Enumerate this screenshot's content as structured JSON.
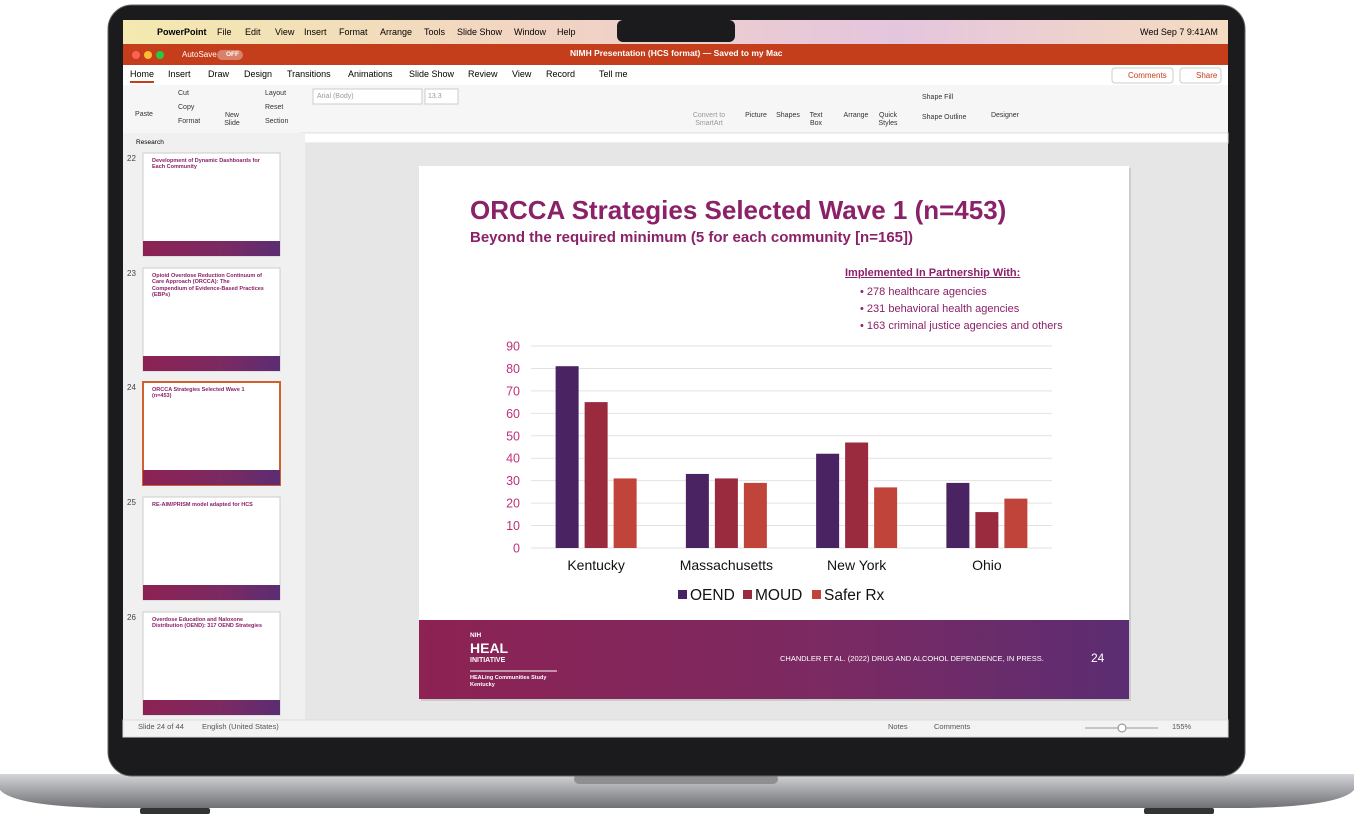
{
  "menu_bar": {
    "app": "PowerPoint",
    "items": [
      "File",
      "Edit",
      "View",
      "Insert",
      "Format",
      "Arrange",
      "Tools",
      "Slide Show",
      "Window",
      "Help"
    ],
    "clock": "Wed Sep 7  9:41AM"
  },
  "title_bar": {
    "autosave": "AutoSave",
    "toggle": "OFF",
    "document": "NIMH Presentation (HCS format) — Saved to my Mac"
  },
  "ribbon": {
    "tabs": [
      "Home",
      "Insert",
      "Draw",
      "Design",
      "Transitions",
      "Animations",
      "Slide Show",
      "Review",
      "View",
      "Record"
    ],
    "search": "Tell me",
    "comments": "Comments",
    "share": "Share",
    "buttons": [
      "Paste",
      "Cut",
      "Copy",
      "Format",
      "New Slide",
      "Layout",
      "Reset",
      "Section",
      "Arial (Body)",
      "13.3",
      "Convert to SmartArt",
      "Picture",
      "Shapes",
      "Text Box",
      "Arrange",
      "Quick Styles",
      "Shape Fill",
      "Shape Outline",
      "Designer"
    ]
  },
  "outline": {
    "section": "Research"
  },
  "thumbnails": [
    {
      "number": "22",
      "title": "Development of Dynamic Dashboards for Each Community"
    },
    {
      "number": "23",
      "title": "Opioid Overdose Reduction Continuum of Care Approach (ORCCA): The Compendium of Evidence-Based Practices (EBPs)"
    },
    {
      "number": "24",
      "title": "ORCCA Strategies Selected Wave 1 (n=453)"
    },
    {
      "number": "25",
      "title": "RE-AIM/PRISM model adapted for HCS"
    },
    {
      "number": "26",
      "title": "Overdose Education and Naloxone Distribution (OEND): 317 OEND Strategies"
    }
  ],
  "slide": {
    "title": "ORCCA Strategies Selected Wave 1 (n=453)",
    "subtitle": "Beyond the required minimum (5 for each community [n=165])",
    "partners_heading": "Implemented In Partnership With:",
    "partners": [
      "278 healthcare agencies",
      "231 behavioral health agencies",
      "163 criminal justice agencies and others"
    ],
    "logo": [
      "NIH",
      "HEAL",
      "INITIATIVE",
      "HEALing Communities Study",
      "Kentucky"
    ],
    "citation": "CHANDLER ET AL. (2022)  DRUG AND ALCOHOL DEPENDENCE, IN PRESS.",
    "page": "24"
  },
  "chart_data": {
    "type": "bar",
    "categories": [
      "Kentucky",
      "Massachusetts",
      "New York",
      "Ohio"
    ],
    "series": [
      {
        "name": "OEND",
        "color": "#4a2362",
        "values": [
          81,
          33,
          42,
          29
        ]
      },
      {
        "name": "MOUD",
        "color": "#9a2a3e",
        "values": [
          65,
          31,
          47,
          16
        ]
      },
      {
        "name": "Safer Rx",
        "color": "#c0443a",
        "values": [
          31,
          29,
          27,
          22
        ]
      }
    ],
    "ylim": [
      0,
      90
    ],
    "yticks": [
      0,
      10,
      20,
      30,
      40,
      50,
      60,
      70,
      80,
      90
    ],
    "grid": true
  },
  "status_bar": {
    "slide": "Slide 24 of 44",
    "language": "English (United States)",
    "notes": "Notes",
    "comments": "Comments",
    "zoom": "155%"
  }
}
